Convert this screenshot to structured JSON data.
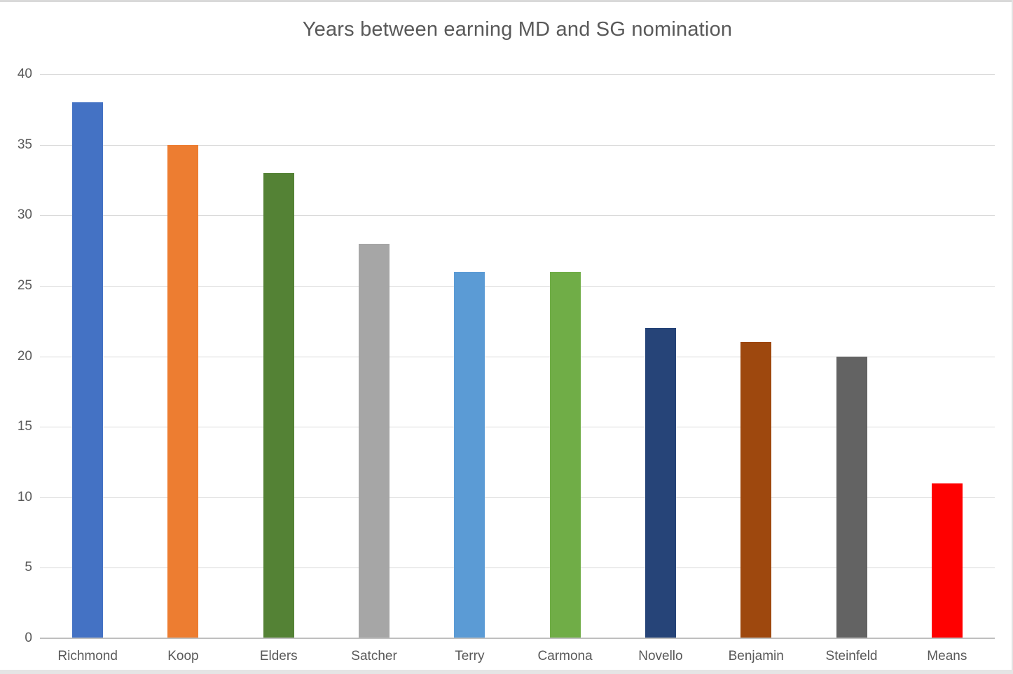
{
  "chart_data": {
    "type": "bar",
    "title": "Years between earning MD and SG nomination",
    "categories": [
      "Richmond",
      "Koop",
      "Elders",
      "Satcher",
      "Terry",
      "Carmona",
      "Novello",
      "Benjamin",
      "Steinfeld",
      "Means"
    ],
    "values": [
      38,
      35,
      33,
      28,
      26,
      26,
      22,
      21,
      20,
      11
    ],
    "bar_colors": [
      "#4472c4",
      "#ed7d31",
      "#548235",
      "#a6a6a6",
      "#5b9bd5",
      "#70ad47",
      "#264478",
      "#9e480e",
      "#636363",
      "#ff0000"
    ],
    "xlabel": "",
    "ylabel": "",
    "ylim": [
      0,
      40
    ],
    "yticks": [
      0,
      5,
      10,
      15,
      20,
      25,
      30,
      35,
      40
    ],
    "grid": true,
    "legend": "none"
  },
  "styles": {
    "title_color": "#595959",
    "label_color": "#595959",
    "grid_color": "#d9d9d9",
    "axis_line_color": "#bfbfbf",
    "background": "#ffffff"
  }
}
